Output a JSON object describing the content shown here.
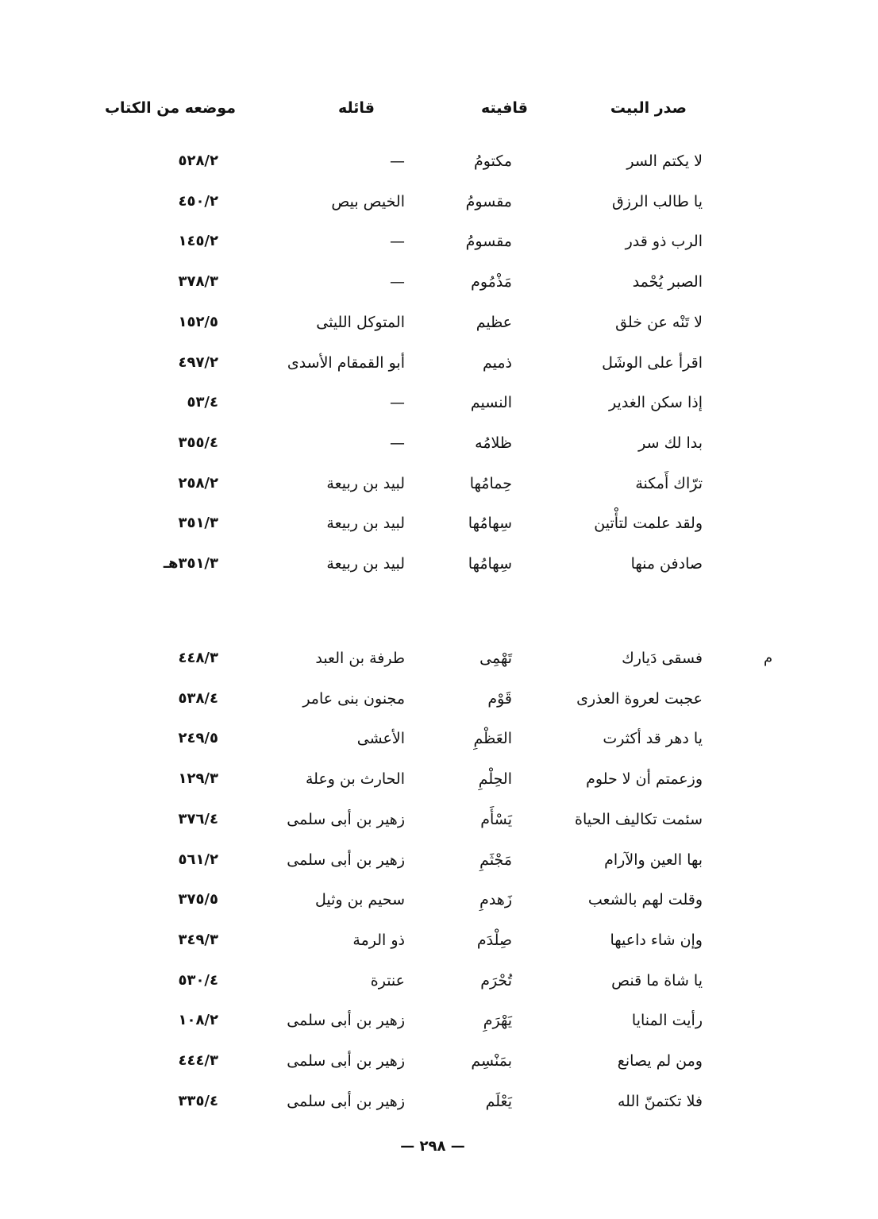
{
  "headers": {
    "verse_start": "صدر البيت",
    "rhyme": "قافيته",
    "poet": "قائله",
    "location": "موضعه من الكتاب"
  },
  "groups": [
    [
      {
        "verse": "لا يكتم السر",
        "rhyme": "مكتومُ",
        "poet": "—",
        "location": "٥٢٨/٢"
      },
      {
        "verse": "يا طالب الرزق",
        "rhyme": "مقسومُ",
        "poet": "الخيص بيص",
        "location": "٤٥٠/٢"
      },
      {
        "verse": "الرب ذو قدر",
        "rhyme": "مقسومُ",
        "poet": "—",
        "location": "١٤٥/٢"
      },
      {
        "verse": "الصبر يُحْمد",
        "rhyme": "مَذْمُوم",
        "poet": "—",
        "location": "٣٧٨/٣"
      },
      {
        "verse": "لا تَنْه عن خلق",
        "rhyme": "عظيم",
        "poet": "المتوكل الليثى",
        "location": "١٥٢/٥"
      },
      {
        "verse": "اقرأ على الوشَل",
        "rhyme": "ذميم",
        "poet": "أبو القمقام الأسدى",
        "location": "٤٩٧/٢"
      },
      {
        "verse": "إذا سكن الغدير",
        "rhyme": "النسيم",
        "poet": "—",
        "location": "٥٣/٤"
      },
      {
        "verse": "بدا لك سر",
        "rhyme": "ظلامُه",
        "poet": "—",
        "location": "٣٥٥/٤"
      },
      {
        "verse": "ترّاك أَمكنة",
        "rhyme": "حِمامُها",
        "poet": "لبيد بن ربيعة",
        "location": "٢٥٨/٢"
      },
      {
        "verse": "ولقد علمت لتأْتين",
        "rhyme": "سِهامُها",
        "poet": "لبيد بن ربيعة",
        "location": "٣٥١/٣"
      },
      {
        "verse": "صادفن منها",
        "rhyme": "سِهامُها",
        "poet": "لبيد بن ربيعة",
        "location": "٣٥١/٣هـ"
      }
    ],
    [
      {
        "verse": "فسقى دَيارك",
        "rhyme": "تَهْمِى",
        "poet": "طرفة بن العبد",
        "location": "٤٤٨/٣"
      },
      {
        "verse": "عجبت لعروة العذرى",
        "rhyme": "قَوْم",
        "poet": "مجنون بنى عامر",
        "location": "٥٣٨/٤"
      },
      {
        "verse": "يا دهر قد أكثرت",
        "rhyme": "العَظْمِ",
        "poet": "الأعشى",
        "location": "٢٤٩/٥"
      },
      {
        "verse": "وزعمتم أن لا حلوم",
        "rhyme": "الحِلْمِ",
        "poet": "الحارث بن وعلة",
        "location": "١٢٩/٣"
      },
      {
        "verse": "سئمت تكاليف الحياة",
        "rhyme": "يَسْأَم",
        "poet": "زهير بن أبى سلمى",
        "location": "٣٧٦/٤"
      },
      {
        "verse": "بها العين والآرام",
        "rhyme": "مَجْثَمِ",
        "poet": "زهير بن أبى سلمى",
        "location": "٥٦١/٢"
      },
      {
        "verse": "وقلت لهم بالشعب",
        "rhyme": "زَهدمِ",
        "poet": "سحيم بن وثيل",
        "location": "٣٧٥/٥"
      },
      {
        "verse": "وإن شاء داعيها",
        "rhyme": "صِلْدَم",
        "poet": "ذو الرمة",
        "location": "٣٤٩/٣"
      },
      {
        "verse": "يا شاة ما قنص",
        "rhyme": "تُحْرَم",
        "poet": "عنترة",
        "location": "٥٣٠/٤"
      },
      {
        "verse": "رأيت المنايا",
        "rhyme": "يَهْرَمِ",
        "poet": "زهير بن أبى سلمى",
        "location": "١٠٨/٢"
      },
      {
        "verse": "ومن لم يصانع",
        "rhyme": "بمَنْسِم",
        "poet": "زهير بن أبى سلمى",
        "location": "٤٤٤/٣"
      },
      {
        "verse": "فلا تكتمنّ الله",
        "rhyme": "يَعْلَم",
        "poet": "زهير بن أبى سلمى",
        "location": "٣٣٥/٤"
      }
    ]
  ],
  "margin_letter": "م",
  "page_number": "— ٢٩٨ —"
}
